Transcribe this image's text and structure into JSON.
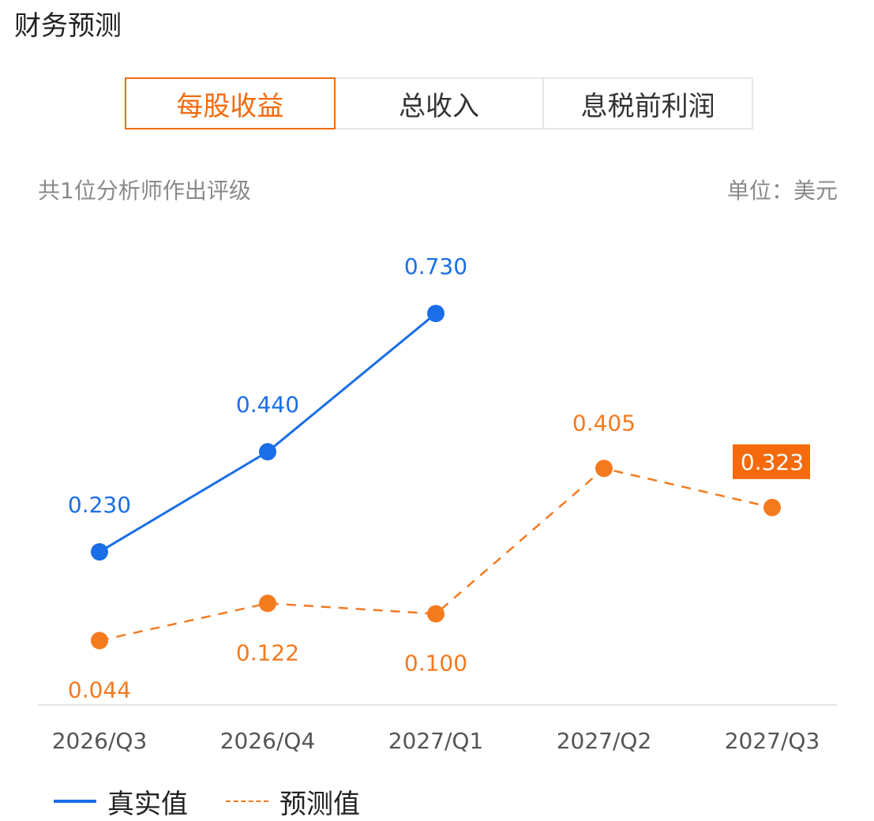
{
  "page_title": "财务预测",
  "tabs": [
    {
      "label": "每股收益",
      "active": true
    },
    {
      "label": "总收入",
      "active": false
    },
    {
      "label": "息税前利润",
      "active": false
    }
  ],
  "subtitle": "共1位分析师作出评级",
  "unit": "单位：美元",
  "legend": {
    "actual_label": "真实值",
    "forecast_label": "预测值"
  },
  "colors": {
    "actual": "#1a6ee8",
    "forecast": "#f47a1e",
    "accent": "#f46a0d",
    "axis_text": "#555555"
  },
  "chart_data": {
    "type": "line",
    "categories": [
      "2026/Q3",
      "2026/Q4",
      "2027/Q1",
      "2027/Q2",
      "2027/Q3"
    ],
    "series": [
      {
        "name": "真实值",
        "style": "solid",
        "values": [
          0.23,
          0.44,
          0.73,
          null,
          null
        ],
        "labels": [
          "0.230",
          "0.440",
          "0.730",
          null,
          null
        ]
      },
      {
        "name": "预测值",
        "style": "dashed",
        "values": [
          0.044,
          0.122,
          0.1,
          0.405,
          0.323
        ],
        "labels": [
          "0.044",
          "0.122",
          "0.100",
          "0.405",
          "0.323"
        ]
      }
    ],
    "highlighted_label": {
      "series": "预测值",
      "category": "2027/Q3"
    },
    "grid": false
  }
}
